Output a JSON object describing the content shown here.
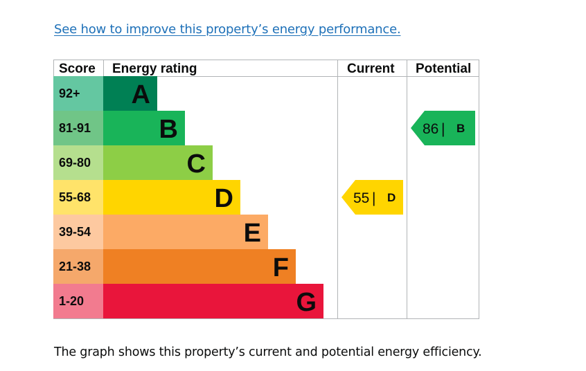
{
  "link_text": "See how to improve this property’s energy performance.",
  "caption": "The graph shows this property’s current and potential energy efficiency.",
  "chart_data": {
    "type": "bar",
    "headers": {
      "score": "Score",
      "rating": "Energy rating",
      "current": "Current",
      "potential": "Potential"
    },
    "bands": [
      {
        "letter": "A",
        "range": "92+",
        "color": "#008054",
        "score_color": "#64c7a1",
        "length": 1
      },
      {
        "letter": "B",
        "range": "81-91",
        "color": "#19b459",
        "score_color": "#70c587",
        "length": 2
      },
      {
        "letter": "C",
        "range": "69-80",
        "color": "#8dce46",
        "score_color": "#b5df8e",
        "length": 3
      },
      {
        "letter": "D",
        "range": "55-68",
        "color": "#ffd500",
        "score_color": "#ffe36a",
        "length": 4
      },
      {
        "letter": "E",
        "range": "39-54",
        "color": "#fcaa65",
        "score_color": "#fdc9a0",
        "length": 5
      },
      {
        "letter": "F",
        "range": "21-38",
        "color": "#ef8023",
        "score_color": "#f5a86b",
        "length": 6
      },
      {
        "letter": "G",
        "range": "1-20",
        "color": "#e9153b",
        "score_color": "#f27b8f",
        "length": 7
      }
    ],
    "current": {
      "value": 55,
      "letter": "D",
      "color": "#ffd500"
    },
    "potential": {
      "value": 86,
      "letter": "B",
      "color": "#19b459"
    }
  }
}
